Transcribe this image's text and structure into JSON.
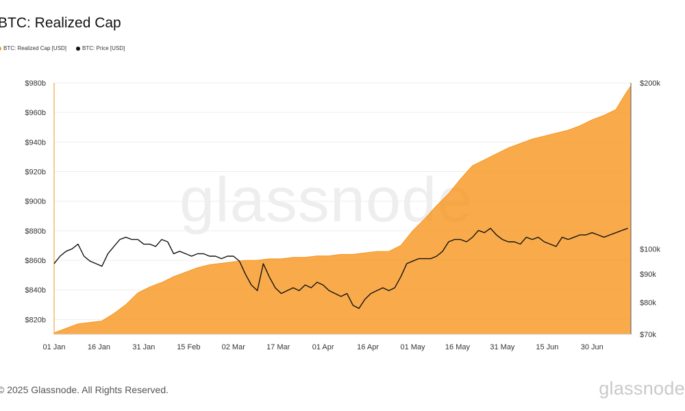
{
  "title": "BTC: Realized Cap",
  "legend": [
    {
      "label": "BTC: Realized Cap [USD]",
      "color": "#f7931a"
    },
    {
      "label": "BTC: Price [USD]",
      "color": "#111111"
    }
  ],
  "watermark": "glassnode",
  "footer": "© 2025 Glassnode. All Rights Reserved.",
  "brand": "glassnode",
  "chart_data": {
    "type": "area",
    "x_tick_labels": [
      "01 Jan",
      "16 Jan",
      "31 Jan",
      "15 Feb",
      "02 Mar",
      "17 Mar",
      "01 Apr",
      "16 Apr",
      "01 May",
      "16 May",
      "31 May",
      "15 Jun",
      "30 Jun"
    ],
    "x_range_days": [
      0,
      193
    ],
    "left_axis": {
      "label": "",
      "unit": "billion USD",
      "range": [
        810,
        980
      ],
      "ticks": [
        820,
        840,
        860,
        880,
        900,
        920,
        940,
        960,
        980
      ],
      "tick_labels": [
        "$820b",
        "$840b",
        "$860b",
        "$880b",
        "$900b",
        "$920b",
        "$940b",
        "$960b",
        "$980b"
      ]
    },
    "right_axis": {
      "label": "",
      "unit": "thousand USD",
      "scale": "log",
      "range": [
        70,
        200
      ],
      "ticks": [
        70,
        80,
        90,
        100,
        200
      ],
      "tick_labels": [
        "$70k",
        "$80k",
        "$90k",
        "$100k",
        "$200k"
      ]
    },
    "series": [
      {
        "name": "BTC: Realized Cap [USD]",
        "axis": "left",
        "color": "#f7931a",
        "x": [
          0,
          4,
          8,
          12,
          16,
          20,
          24,
          28,
          32,
          36,
          40,
          44,
          48,
          52,
          56,
          60,
          64,
          68,
          72,
          76,
          80,
          84,
          88,
          92,
          96,
          100,
          104,
          108,
          112,
          116,
          120,
          124,
          128,
          132,
          136,
          140,
          144,
          148,
          152,
          156,
          160,
          164,
          168,
          172,
          176,
          180,
          184,
          188,
          191,
          193
        ],
        "y": [
          811,
          814,
          817,
          818,
          819,
          824,
          830,
          838,
          842,
          845,
          849,
          852,
          855,
          857,
          858,
          859,
          860,
          860,
          861,
          861,
          862,
          862,
          863,
          863,
          864,
          864,
          865,
          866,
          866,
          870,
          880,
          888,
          897,
          905,
          915,
          924,
          928,
          932,
          936,
          939,
          942,
          944,
          946,
          948,
          951,
          955,
          958,
          962,
          972,
          978
        ]
      },
      {
        "name": "BTC: Price [USD]",
        "axis": "right",
        "color": "#111111",
        "x": [
          0,
          2,
          4,
          6,
          8,
          10,
          12,
          14,
          16,
          18,
          20,
          22,
          24,
          26,
          28,
          30,
          32,
          34,
          36,
          38,
          40,
          42,
          44,
          46,
          48,
          50,
          52,
          54,
          56,
          58,
          60,
          62,
          64,
          66,
          68,
          70,
          72,
          74,
          76,
          78,
          80,
          82,
          84,
          86,
          88,
          90,
          92,
          94,
          96,
          98,
          100,
          102,
          104,
          106,
          108,
          110,
          112,
          114,
          116,
          118,
          120,
          122,
          124,
          126,
          128,
          130,
          132,
          134,
          136,
          138,
          140,
          142,
          144,
          146,
          148,
          150,
          152,
          154,
          156,
          158,
          160,
          162,
          164,
          166,
          168,
          170,
          172,
          174,
          176,
          178,
          180,
          182,
          184,
          186,
          188,
          190,
          192
        ],
        "y": [
          94,
          97,
          99,
          100,
          102,
          97,
          95,
          94,
          93,
          98,
          101,
          104,
          105,
          104,
          104,
          102,
          102,
          101,
          104,
          103,
          98,
          99,
          98,
          97,
          98,
          98,
          97,
          97,
          96,
          97,
          97,
          95,
          90,
          86,
          84,
          94,
          89,
          85,
          83,
          84,
          85,
          84,
          86,
          85,
          87,
          86,
          84,
          83,
          82,
          83,
          79,
          78,
          81,
          83,
          84,
          85,
          84,
          85,
          89,
          94,
          95,
          96,
          96,
          96,
          97,
          99,
          103,
          104,
          104,
          103,
          105,
          108,
          107,
          109,
          106,
          104,
          103,
          103,
          102,
          105,
          104,
          105,
          103,
          102,
          101,
          105,
          104,
          105,
          106,
          106,
          107,
          106,
          105,
          106,
          107,
          108,
          109
        ]
      }
    ],
    "grid": true
  }
}
